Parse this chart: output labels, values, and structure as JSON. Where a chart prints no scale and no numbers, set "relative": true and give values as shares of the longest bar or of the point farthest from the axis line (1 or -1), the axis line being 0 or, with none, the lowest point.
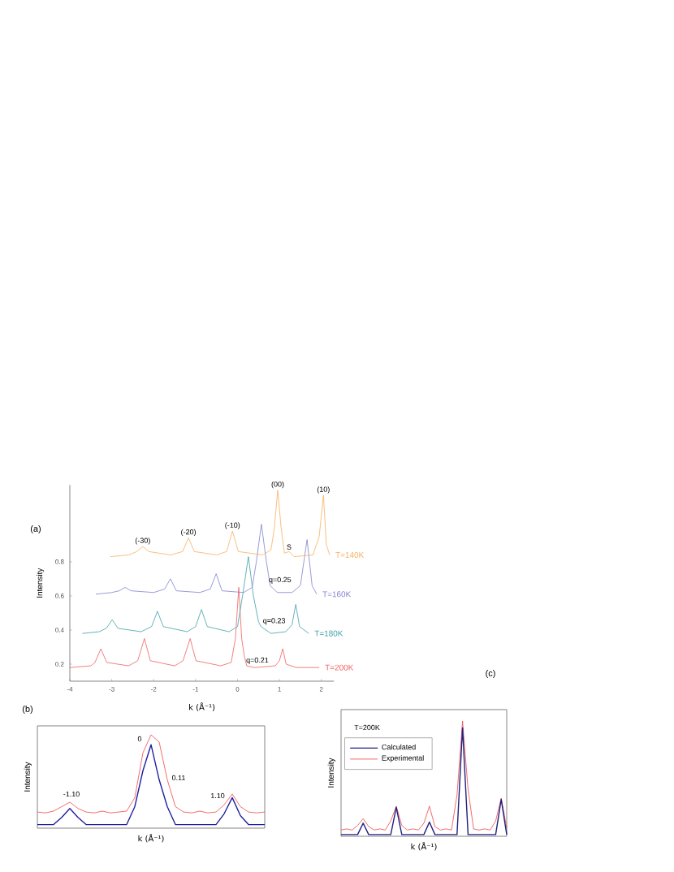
{
  "chart_data": [
    {
      "type": "line",
      "title": "(a)",
      "xlabel": "k (Å⁻¹)",
      "ylabel": "Intensity",
      "xlim": [
        -4,
        2.3
      ],
      "ylim": [
        0.1,
        1.25
      ],
      "xticks": [
        -4,
        -3,
        -2,
        -1,
        0,
        1,
        2
      ],
      "yticks": [
        0.2,
        0.4,
        0.6,
        0.8
      ],
      "series": [
        {
          "name": "T=200K",
          "color": "#f06060",
          "x": [
            -4,
            -3.5,
            -3.4,
            -3.26,
            -3.12,
            -2.6,
            -2.38,
            -2.22,
            -2.08,
            -1.5,
            -1.3,
            -1.13,
            -0.99,
            -0.4,
            -0.15,
            -0.05,
            0.03,
            0.1,
            0.16,
            0.22,
            0.4,
            0.9,
            1.0,
            1.08,
            1.16,
            1.4,
            1.95
          ],
          "values": [
            0.18,
            0.19,
            0.21,
            0.29,
            0.21,
            0.19,
            0.22,
            0.35,
            0.22,
            0.19,
            0.22,
            0.35,
            0.22,
            0.19,
            0.21,
            0.35,
            0.65,
            0.35,
            0.25,
            0.19,
            0.18,
            0.19,
            0.22,
            0.29,
            0.2,
            0.18,
            0.18
          ]
        },
        {
          "name": "T=180K",
          "color": "#40a0a8",
          "x": [
            -3.7,
            -3.3,
            -3.13,
            -2.99,
            -2.85,
            -2.3,
            -2.05,
            -1.91,
            -1.77,
            -1.2,
            -1.0,
            -0.86,
            -0.72,
            -0.2,
            0.0,
            0.12,
            0.26,
            0.38,
            0.5,
            0.56,
            0.8,
            1.15,
            1.3,
            1.39,
            1.48,
            1.7
          ],
          "values": [
            0.38,
            0.39,
            0.41,
            0.46,
            0.41,
            0.39,
            0.42,
            0.51,
            0.42,
            0.39,
            0.42,
            0.52,
            0.42,
            0.39,
            0.42,
            0.6,
            0.83,
            0.6,
            0.45,
            0.42,
            0.38,
            0.39,
            0.43,
            0.55,
            0.42,
            0.38
          ]
        },
        {
          "name": "T=160K",
          "color": "#8080d0",
          "x": [
            -3.38,
            -3.0,
            -2.82,
            -2.68,
            -2.54,
            -2.0,
            -1.74,
            -1.6,
            -1.46,
            -0.9,
            -0.65,
            -0.51,
            -0.37,
            0.15,
            0.35,
            0.45,
            0.57,
            0.69,
            0.78,
            0.95,
            1.3,
            1.5,
            1.66,
            1.78,
            1.89
          ],
          "values": [
            0.61,
            0.62,
            0.63,
            0.65,
            0.63,
            0.62,
            0.64,
            0.7,
            0.63,
            0.62,
            0.64,
            0.73,
            0.63,
            0.62,
            0.65,
            0.8,
            1.02,
            0.8,
            0.66,
            0.62,
            0.62,
            0.66,
            0.93,
            0.66,
            0.61
          ]
        },
        {
          "name": "T=140K",
          "color": "#f8b060",
          "x": [
            -3.03,
            -2.6,
            -2.4,
            -2.26,
            -2.12,
            -1.6,
            -1.31,
            -1.17,
            -1.03,
            -0.5,
            -0.26,
            -0.12,
            0.02,
            0.6,
            0.8,
            0.88,
            0.96,
            1.04,
            1.12,
            1.23,
            1.35,
            1.8,
            1.95,
            2.05,
            2.12,
            2.2
          ],
          "values": [
            0.83,
            0.84,
            0.86,
            0.89,
            0.86,
            0.84,
            0.86,
            0.94,
            0.86,
            0.84,
            0.86,
            0.98,
            0.86,
            0.84,
            0.87,
            1.0,
            1.22,
            1.0,
            0.85,
            0.86,
            0.83,
            0.84,
            0.95,
            1.19,
            0.9,
            0.84
          ]
        }
      ],
      "annotations": [
        {
          "text": "(-30)",
          "x": -2.26,
          "y": 0.89
        },
        {
          "text": "(-20)",
          "x": -1.17,
          "y": 0.94
        },
        {
          "text": "(-10)",
          "x": -0.12,
          "y": 0.98
        },
        {
          "text": "(00)",
          "x": 0.96,
          "y": 1.22
        },
        {
          "text": "(10)",
          "x": 2.05,
          "y": 1.19
        },
        {
          "text": "S",
          "x": 1.23,
          "y": 0.86
        },
        {
          "text": "q=0.25",
          "x": 0.7,
          "y": 0.66
        },
        {
          "text": "q=0.23",
          "x": 0.56,
          "y": 0.42
        },
        {
          "text": "q=0.21",
          "x": 0.16,
          "y": 0.25
        }
      ]
    },
    {
      "type": "line",
      "title": "(b)",
      "xlabel": "k (Å⁻¹)",
      "ylabel": "Intensity",
      "relative": true,
      "categories": [
        null,
        null,
        null,
        null,
        null,
        null,
        null,
        null,
        null,
        null,
        null,
        null,
        null,
        null,
        null,
        null,
        null,
        null,
        null,
        null,
        null,
        null,
        null,
        null,
        null,
        null,
        null,
        null,
        null
      ],
      "series": [
        {
          "color": "#f04848",
          "values": [
            0.14,
            0.13,
            0.15,
            0.2,
            0.25,
            0.18,
            0.14,
            0.13,
            0.15,
            0.13,
            0.14,
            0.15,
            0.3,
            0.8,
            1.0,
            0.92,
            0.5,
            0.2,
            0.14,
            0.13,
            0.15,
            0.13,
            0.14,
            0.22,
            0.34,
            0.2,
            0.14,
            0.13,
            0.14
          ]
        },
        {
          "color": "#2020a0",
          "values": [
            0,
            0,
            0,
            0.08,
            0.18,
            0.08,
            0,
            0,
            0,
            0,
            0,
            0,
            0.2,
            0.6,
            0.89,
            0.5,
            0.2,
            0,
            0,
            0,
            0,
            0,
            0,
            0.12,
            0.3,
            0.1,
            0,
            0,
            0
          ]
        }
      ],
      "annotations": [
        "-1.10",
        "0",
        "0.11",
        "1.10"
      ]
    },
    {
      "type": "line",
      "title": "(c)",
      "xlabel": "k (Å⁻¹)",
      "ylabel": "Intensity",
      "relative": true,
      "legend": "top left",
      "categories": [
        null,
        null,
        null,
        null,
        null,
        null,
        null,
        null,
        null,
        null,
        null,
        null,
        null,
        null,
        null,
        null,
        null,
        null,
        null,
        null,
        null,
        null,
        null,
        null,
        null,
        null,
        null,
        null,
        null,
        null,
        null
      ],
      "series": [
        {
          "name": "Experimental",
          "color": "#f04848",
          "values": [
            0.04,
            0.05,
            0.04,
            0.08,
            0.14,
            0.07,
            0.04,
            0.05,
            0.04,
            0.12,
            0.25,
            0.08,
            0.04,
            0.05,
            0.04,
            0.1,
            0.25,
            0.07,
            0.04,
            0.05,
            0.04,
            0.35,
            1.0,
            0.4,
            0.05,
            0.04,
            0.05,
            0.04,
            0.12,
            0.32,
            0.06
          ]
        },
        {
          "name": "Calculated",
          "color": "#202080",
          "values": [
            0,
            0,
            0,
            0,
            0.1,
            0,
            0,
            0,
            0,
            0,
            0.24,
            0,
            0,
            0,
            0,
            0,
            0.11,
            0,
            0,
            0,
            0,
            0,
            0.94,
            0,
            0,
            0,
            0,
            0,
            0,
            0.31,
            0
          ]
        }
      ],
      "annotations": [
        "T=200K"
      ]
    }
  ]
}
